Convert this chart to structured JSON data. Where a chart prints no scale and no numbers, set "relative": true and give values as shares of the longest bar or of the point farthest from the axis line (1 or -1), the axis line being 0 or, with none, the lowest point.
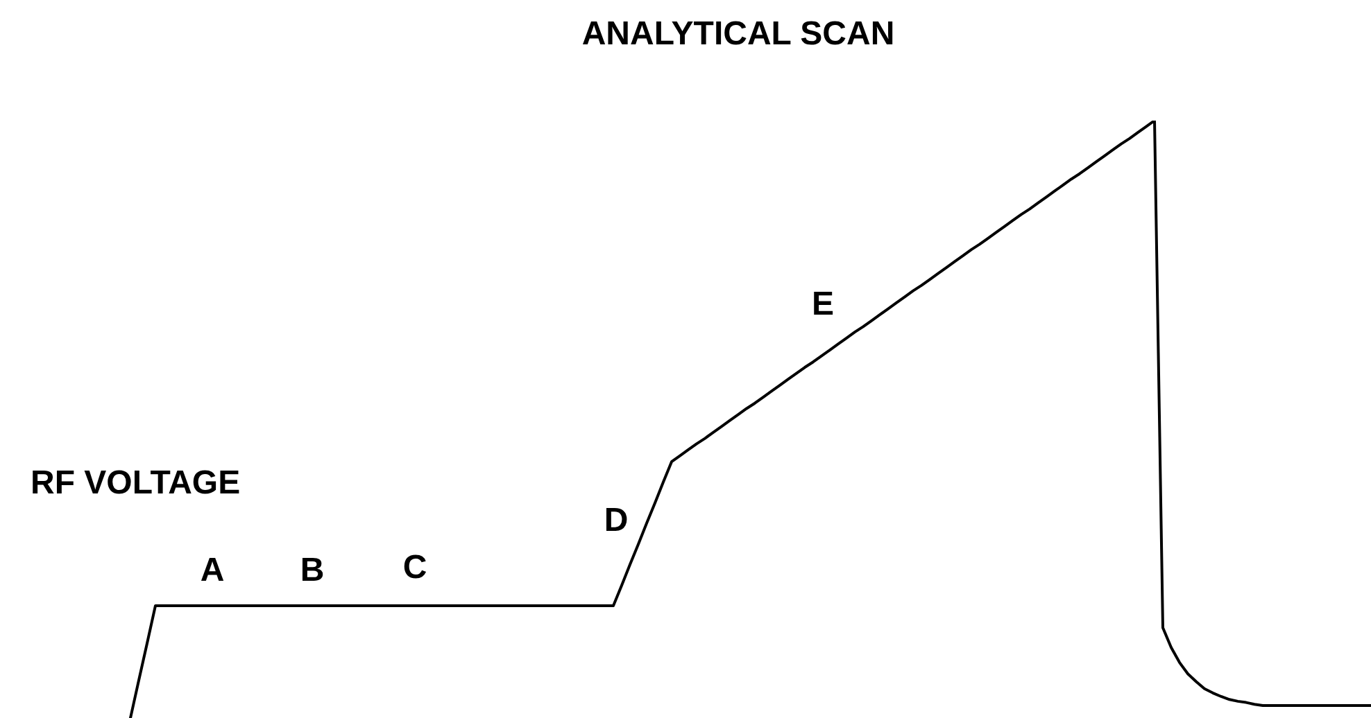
{
  "chart_data": {
    "type": "line",
    "title": "ANALYTICAL SCAN",
    "relative": true,
    "categories": [
      null,
      null,
      null,
      null,
      null,
      null,
      null,
      null,
      null,
      null,
      null,
      null,
      null,
      null,
      null,
      null,
      null,
      null,
      null,
      null,
      null,
      null,
      null,
      null,
      null,
      null,
      null,
      null,
      null,
      null,
      null,
      null,
      null,
      null,
      null,
      null,
      null,
      null,
      null,
      null,
      null,
      null,
      null,
      null,
      null,
      null,
      null,
      null,
      null,
      null,
      null,
      null,
      null,
      null,
      null,
      null,
      null,
      null,
      null,
      null,
      null,
      null,
      null,
      null,
      null,
      null,
      null,
      null,
      null,
      null,
      null,
      null,
      null,
      null,
      null,
      null,
      null,
      null,
      null,
      null,
      null,
      null,
      null,
      null,
      null,
      null,
      null,
      null,
      null,
      null,
      null,
      null,
      null,
      null,
      null,
      null,
      null,
      null,
      null,
      null,
      null,
      null,
      null,
      null,
      null,
      null,
      null,
      null,
      null,
      null,
      null,
      null,
      null,
      null,
      null,
      null,
      null,
      null,
      null,
      null,
      null,
      null,
      null,
      null,
      null,
      null,
      null,
      null,
      null,
      null,
      null,
      null,
      null,
      null,
      null,
      null,
      null,
      null,
      null,
      null,
      null,
      null,
      null,
      null,
      null,
      null,
      null,
      null,
      null,
      null
    ],
    "series": [
      {
        "name": "RF VOLTAGE",
        "color": "#000000",
        "values": [
          0,
          0.063,
          0.125,
          0.188,
          0.188,
          0.188,
          0.188,
          0.188,
          0.188,
          0.188,
          0.188,
          0.188,
          0.188,
          0.188,
          0.188,
          0.188,
          0.188,
          0.188,
          0.188,
          0.188,
          0.188,
          0.188,
          0.188,
          0.188,
          0.188,
          0.188,
          0.188,
          0.188,
          0.188,
          0.188,
          0.188,
          0.188,
          0.188,
          0.188,
          0.188,
          0.188,
          0.188,
          0.188,
          0.188,
          0.188,
          0.188,
          0.188,
          0.188,
          0.188,
          0.188,
          0.188,
          0.188,
          0.188,
          0.188,
          0.188,
          0.188,
          0.188,
          0.188,
          0.188,
          0.188,
          0.188,
          0.188,
          0.188,
          0.188,
          0.222,
          0.257,
          0.291,
          0.326,
          0.36,
          0.395,
          0.429,
          0.439,
          0.449,
          0.459,
          0.468,
          0.478,
          0.488,
          0.498,
          0.508,
          0.518,
          0.527,
          0.537,
          0.547,
          0.557,
          0.567,
          0.577,
          0.587,
          0.596,
          0.606,
          0.616,
          0.626,
          0.636,
          0.646,
          0.655,
          0.665,
          0.675,
          0.685,
          0.695,
          0.705,
          0.715,
          0.724,
          0.734,
          0.744,
          0.754,
          0.764,
          0.774,
          0.784,
          0.793,
          0.803,
          0.813,
          0.823,
          0.833,
          0.843,
          0.852,
          0.862,
          0.872,
          0.882,
          0.892,
          0.902,
          0.911,
          0.921,
          0.931,
          0.941,
          0.951,
          0.961,
          0.97,
          0.98,
          0.99,
          1,
          0.151,
          0.118,
          0.093,
          0.074,
          0.061,
          0.049,
          0.042,
          0.036,
          0.031,
          0.028,
          0.026,
          0.023,
          0.021,
          0.021,
          0.021,
          0.021,
          0.021,
          0.021,
          0.021,
          0.021,
          0.021,
          0.021,
          0.021,
          0.021,
          0.021,
          0.021
        ]
      }
    ],
    "annotations": [
      "A",
      "B",
      "C",
      "D",
      "E"
    ]
  }
}
